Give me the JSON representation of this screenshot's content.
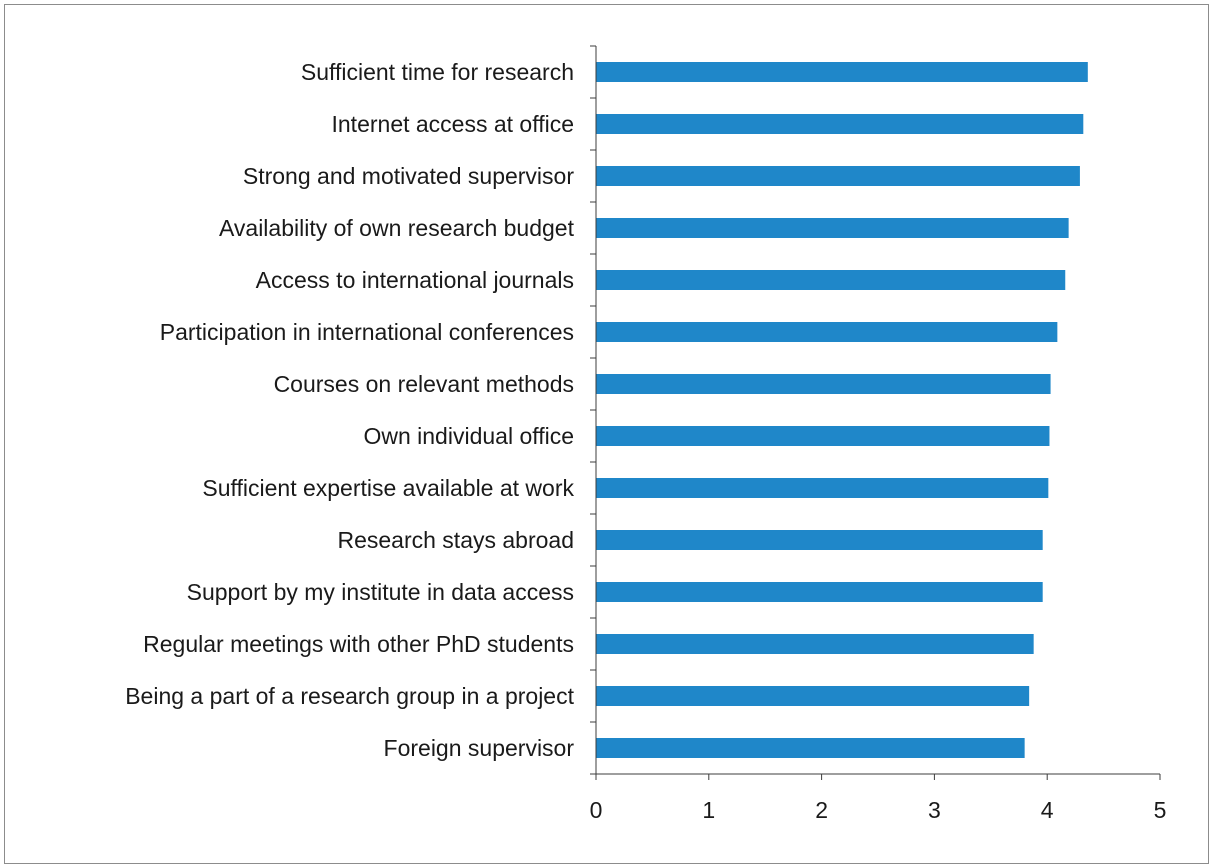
{
  "chart_data": {
    "type": "bar",
    "orientation": "horizontal",
    "categories": [
      "Sufficient time for research",
      "Internet access at office",
      "Strong and motivated supervisor",
      "Availability of own research budget",
      "Access to international journals",
      "Participation in international conferences",
      "Courses on relevant methods",
      "Own individual office",
      "Sufficient expertise available at work",
      "Research stays abroad",
      "Support by my institute in data access",
      "Regular meetings with other PhD students",
      "Being a part of a research group in a project",
      "Foreign supervisor"
    ],
    "values": [
      4.36,
      4.32,
      4.29,
      4.19,
      4.16,
      4.09,
      4.03,
      4.02,
      4.01,
      3.96,
      3.96,
      3.88,
      3.84,
      3.8
    ],
    "xlim": [
      0,
      5
    ],
    "xticks": [
      "0",
      "1",
      "2",
      "3",
      "4",
      "5"
    ],
    "title": "",
    "xlabel": "",
    "ylabel": "",
    "grid": false,
    "bar_color": "#1f87c9"
  }
}
